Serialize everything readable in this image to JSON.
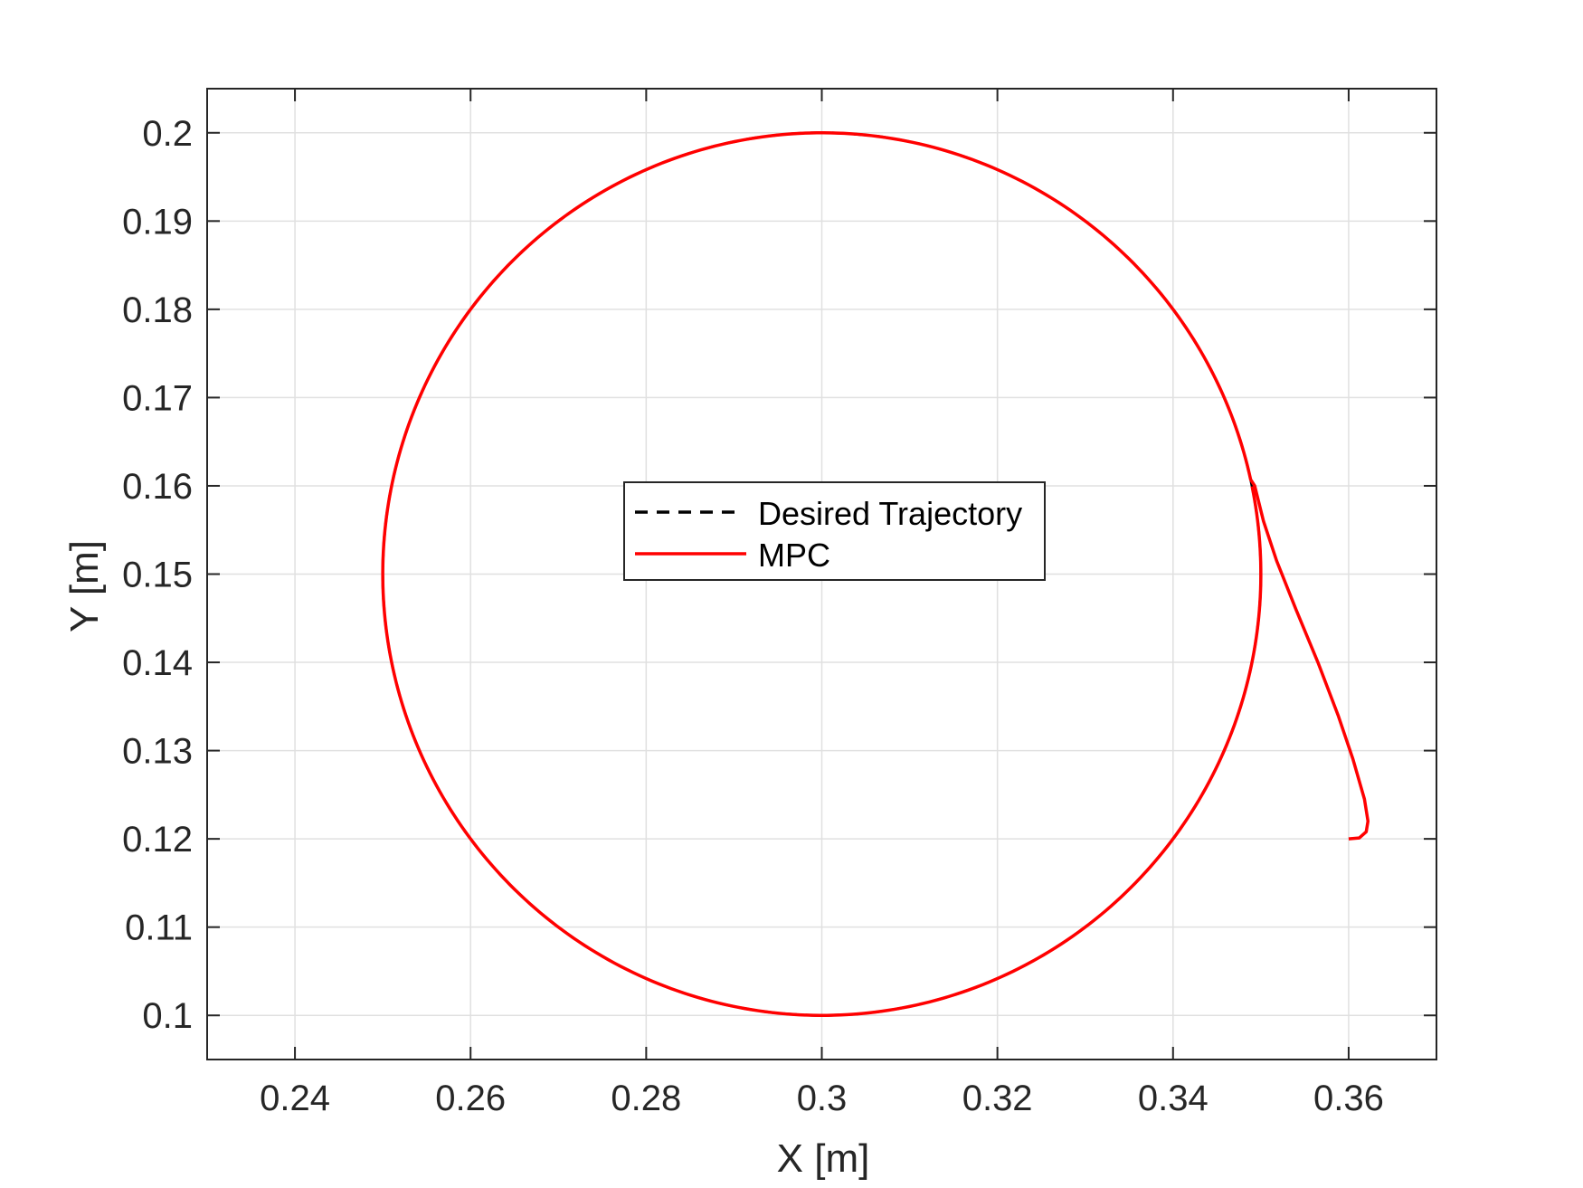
{
  "chart_data": {
    "type": "line",
    "xlabel": "X [m]",
    "ylabel": "Y [m]",
    "xlim": [
      0.23,
      0.37
    ],
    "ylim": [
      0.095,
      0.205
    ],
    "x_ticks": [
      0.24,
      0.26,
      0.28,
      0.3,
      0.32,
      0.34,
      0.36
    ],
    "x_tick_labels": [
      "0.24",
      "0.26",
      "0.28",
      "0.3",
      "0.32",
      "0.34",
      "0.36"
    ],
    "y_ticks": [
      0.1,
      0.11,
      0.12,
      0.13,
      0.14,
      0.15,
      0.16,
      0.17,
      0.18,
      0.19,
      0.2
    ],
    "y_tick_labels": [
      "0.1",
      "0.11",
      "0.12",
      "0.13",
      "0.14",
      "0.15",
      "0.16",
      "0.17",
      "0.18",
      "0.19",
      "0.2"
    ],
    "grid": true,
    "legend_position": "center",
    "colors": {
      "desired": "#000000",
      "mpc": "#ff0000",
      "grid": "#e0e0e0",
      "axis": "#262626"
    },
    "series": [
      {
        "name": "Desired Trajectory",
        "style": "dashed",
        "shape": "circle",
        "center": [
          0.3,
          0.15
        ],
        "radius": 0.05
      },
      {
        "name": "MPC",
        "style": "solid",
        "approach_points": [
          [
            0.36,
            0.12
          ],
          [
            0.3612,
            0.1201
          ],
          [
            0.362,
            0.1208
          ],
          [
            0.3622,
            0.122
          ],
          [
            0.3618,
            0.1245
          ],
          [
            0.3605,
            0.129
          ],
          [
            0.3588,
            0.134
          ],
          [
            0.3565,
            0.14
          ],
          [
            0.354,
            0.146
          ],
          [
            0.3518,
            0.1515
          ],
          [
            0.3503,
            0.156
          ],
          [
            0.3493,
            0.16
          ]
        ],
        "then_follows": "circle",
        "circle_center": [
          0.3,
          0.15
        ],
        "circle_radius": 0.05
      }
    ]
  }
}
